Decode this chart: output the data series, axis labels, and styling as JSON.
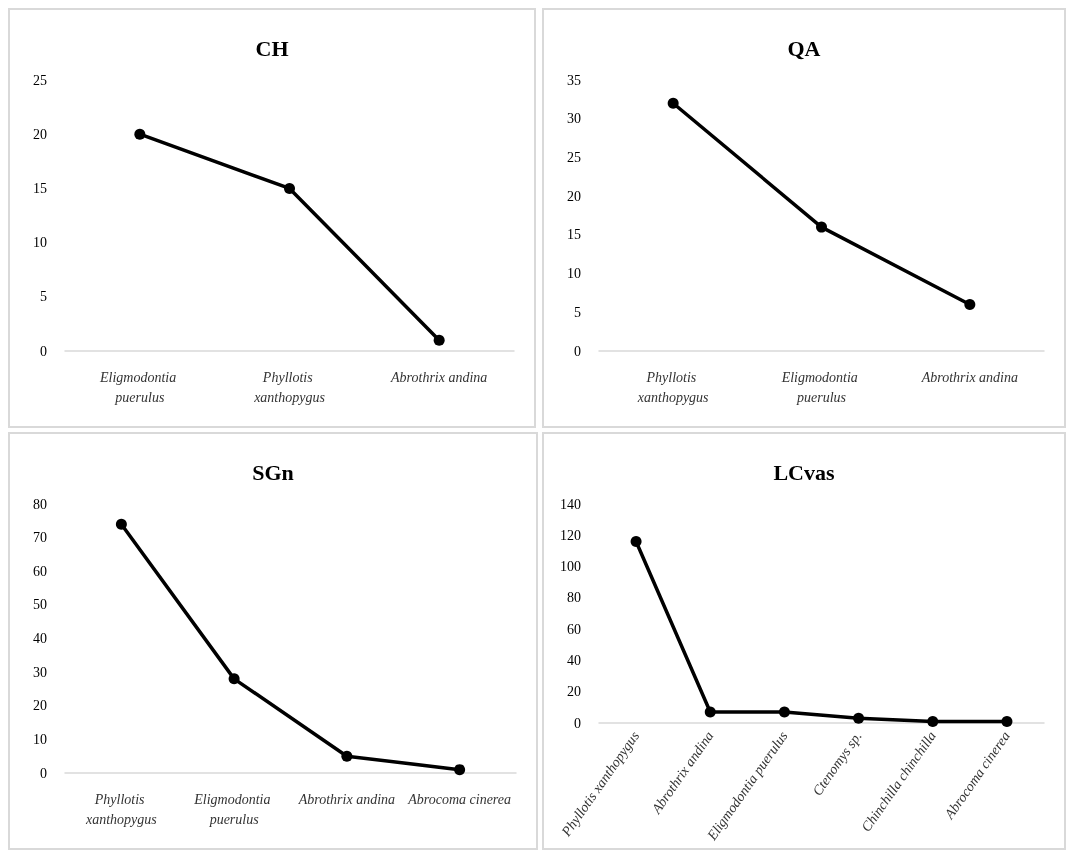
{
  "chart_data": [
    {
      "type": "line",
      "title": "CH",
      "categories": [
        "Eligmodontia puerulus",
        "Phyllotis xanthopygus",
        "Abrothrix andina"
      ],
      "series": [
        {
          "color": "#000000",
          "values": [
            20,
            15,
            1
          ]
        }
      ],
      "ylim": [
        0,
        25
      ],
      "yticks": [
        0,
        5,
        10,
        15,
        20,
        25
      ],
      "grid": false,
      "marker": "circle",
      "line_style": "solid"
    },
    {
      "type": "line",
      "title": "QA",
      "categories": [
        "Phyllotis xanthopygus",
        "Eligmodontia puerulus",
        "Abrothrix andina"
      ],
      "series": [
        {
          "color": "#000000",
          "values": [
            32,
            16,
            6
          ]
        }
      ],
      "ylim": [
        0,
        35
      ],
      "yticks": [
        0,
        5,
        10,
        15,
        20,
        25,
        30,
        35
      ],
      "grid": false,
      "marker": "circle",
      "line_style": "solid"
    },
    {
      "type": "line",
      "title": "SGn",
      "categories": [
        "Phyllotis xanthopygus",
        "Eligmodontia puerulus",
        "Abrothrix andina",
        "Abrocoma cinerea"
      ],
      "series": [
        {
          "color": "#000000",
          "values": [
            74,
            28,
            5,
            1
          ]
        }
      ],
      "ylim": [
        0,
        80
      ],
      "yticks": [
        0,
        10,
        20,
        30,
        40,
        50,
        60,
        70,
        80
      ],
      "grid": false,
      "marker": "circle",
      "line_style": "solid"
    },
    {
      "type": "line",
      "title": "LCvas",
      "categories": [
        "Phyllotis xanthopygus",
        "Abrothrix andina",
        "Eligmodontia puerulus",
        "Ctenomys sp.",
        "Chinchilla chinchilla",
        "Abrocoma cinerea"
      ],
      "series": [
        {
          "color": "#000000",
          "values": [
            116,
            7,
            7,
            3,
            1,
            1
          ]
        }
      ],
      "ylim": [
        0,
        140
      ],
      "yticks": [
        0,
        20,
        40,
        60,
        80,
        100,
        120,
        140
      ],
      "grid": false,
      "marker": "circle",
      "line_style": "solid"
    }
  ]
}
